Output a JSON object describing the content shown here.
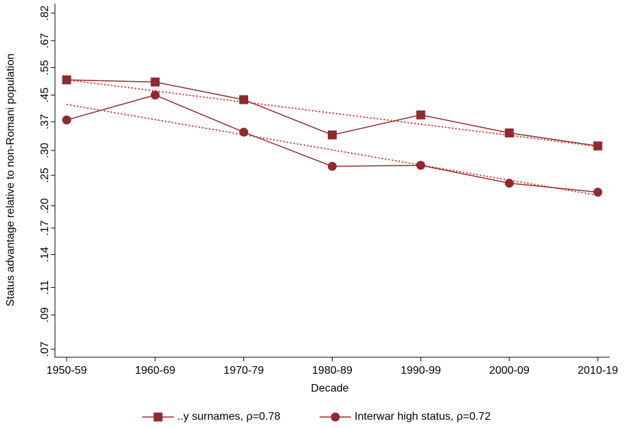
{
  "chart_data": {
    "type": "line",
    "x_label": "Decade",
    "y_label": "Status advantage relative to non-Romani population",
    "categories": [
      "1950-59",
      "1960-69",
      "1970-79",
      "1980-89",
      "1990-99",
      "2000-09",
      "2010-19"
    ],
    "log_y": true,
    "ylim": [
      0.066,
      0.88
    ],
    "yticks": [
      {
        "value": 0.07,
        "label": ".07"
      },
      {
        "value": 0.09,
        "label": ".09"
      },
      {
        "value": 0.11,
        "label": ".11"
      },
      {
        "value": 0.14,
        "label": ".14"
      },
      {
        "value": 0.17,
        "label": ".17"
      },
      {
        "value": 0.2,
        "label": ".20"
      },
      {
        "value": 0.25,
        "label": ".25"
      },
      {
        "value": 0.3,
        "label": ".30"
      },
      {
        "value": 0.37,
        "label": ".37"
      },
      {
        "value": 0.45,
        "label": ".45"
      },
      {
        "value": 0.55,
        "label": ".55"
      },
      {
        "value": 0.67,
        "label": ".67"
      },
      {
        "value": 0.82,
        "label": ".82"
      }
    ],
    "legend": "bottom",
    "trend_color": "#e8252a",
    "series": [
      {
        "name": "..y surnames, ρ=0.78",
        "color": "#8e2b31",
        "marker": "square",
        "values": [
          0.503,
          0.495,
          0.435,
          0.336,
          0.389,
          0.341,
          0.31
        ],
        "trend_values": [
          0.503,
          0.309
        ]
      },
      {
        "name": "Interwar high status, ρ=0.72",
        "color": "#8e2b31",
        "marker": "circle",
        "values": [
          0.375,
          0.45,
          0.343,
          0.267,
          0.269,
          0.236,
          0.221
        ],
        "trend_values": [
          0.42,
          0.216
        ]
      }
    ]
  }
}
